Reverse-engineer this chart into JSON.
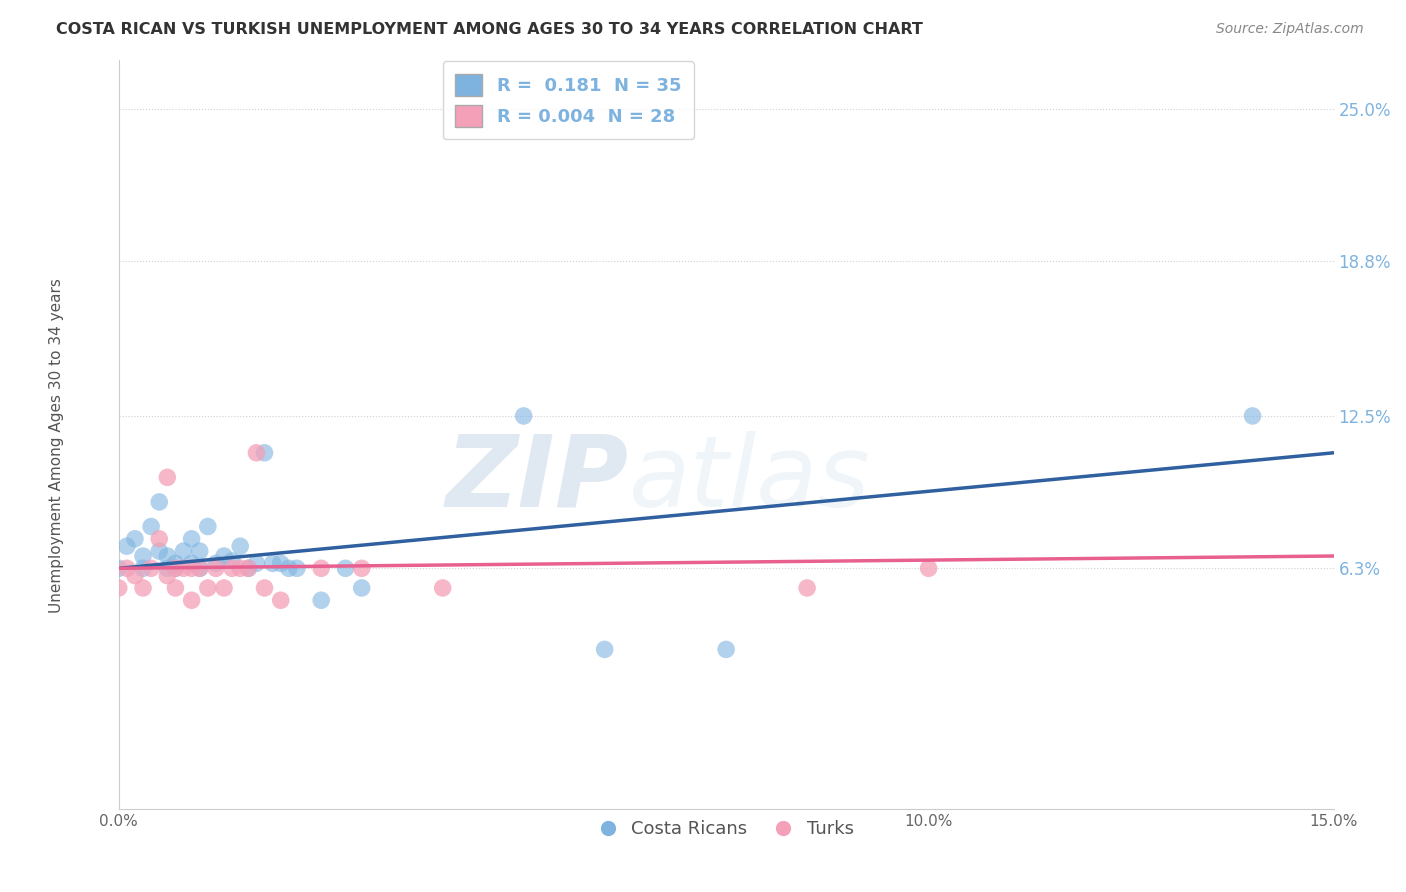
{
  "title": "COSTA RICAN VS TURKISH UNEMPLOYMENT AMONG AGES 30 TO 34 YEARS CORRELATION CHART",
  "source": "Source: ZipAtlas.com",
  "ylabel": "Unemployment Among Ages 30 to 34 years",
  "xlim": [
    0.0,
    0.15
  ],
  "ylim": [
    -0.035,
    0.27
  ],
  "yticks": [
    0.063,
    0.125,
    0.188,
    0.25
  ],
  "ytick_labels": [
    "6.3%",
    "12.5%",
    "18.8%",
    "25.0%"
  ],
  "xticks": [
    0.0,
    0.05,
    0.1,
    0.15
  ],
  "xtick_labels": [
    "0.0%",
    "",
    "10.0%",
    "15.0%"
  ],
  "blue_color": "#7eb3e0",
  "pink_color": "#f4a0b8",
  "blue_line_color": "#3060a0",
  "pink_line_color": "#e86090",
  "watermark_zip": "ZIP",
  "watermark_atlas": "atlas",
  "background_color": "#ffffff",
  "grid_color": "#d0d0d0",
  "costa_rican_points": [
    [
      0.0,
      0.063
    ],
    [
      0.001,
      0.072
    ],
    [
      0.002,
      0.075
    ],
    [
      0.003,
      0.068
    ],
    [
      0.003,
      0.063
    ],
    [
      0.004,
      0.08
    ],
    [
      0.005,
      0.09
    ],
    [
      0.005,
      0.07
    ],
    [
      0.006,
      0.068
    ],
    [
      0.006,
      0.063
    ],
    [
      0.007,
      0.065
    ],
    [
      0.007,
      0.063
    ],
    [
      0.008,
      0.07
    ],
    [
      0.009,
      0.075
    ],
    [
      0.009,
      0.065
    ],
    [
      0.01,
      0.063
    ],
    [
      0.01,
      0.07
    ],
    [
      0.011,
      0.08
    ],
    [
      0.012,
      0.065
    ],
    [
      0.013,
      0.068
    ],
    [
      0.014,
      0.066
    ],
    [
      0.015,
      0.072
    ],
    [
      0.016,
      0.063
    ],
    [
      0.017,
      0.065
    ],
    [
      0.018,
      0.11
    ],
    [
      0.019,
      0.065
    ],
    [
      0.02,
      0.065
    ],
    [
      0.021,
      0.063
    ],
    [
      0.022,
      0.063
    ],
    [
      0.025,
      0.05
    ],
    [
      0.028,
      0.063
    ],
    [
      0.03,
      0.055
    ],
    [
      0.05,
      0.125
    ],
    [
      0.06,
      0.03
    ],
    [
      0.075,
      0.03
    ],
    [
      0.14,
      0.125
    ]
  ],
  "turkish_points": [
    [
      0.0,
      0.055
    ],
    [
      0.001,
      0.063
    ],
    [
      0.002,
      0.06
    ],
    [
      0.003,
      0.055
    ],
    [
      0.004,
      0.063
    ],
    [
      0.005,
      0.075
    ],
    [
      0.006,
      0.1
    ],
    [
      0.006,
      0.06
    ],
    [
      0.007,
      0.063
    ],
    [
      0.007,
      0.055
    ],
    [
      0.008,
      0.063
    ],
    [
      0.009,
      0.05
    ],
    [
      0.009,
      0.063
    ],
    [
      0.01,
      0.063
    ],
    [
      0.011,
      0.055
    ],
    [
      0.012,
      0.063
    ],
    [
      0.013,
      0.055
    ],
    [
      0.014,
      0.063
    ],
    [
      0.015,
      0.063
    ],
    [
      0.016,
      0.063
    ],
    [
      0.017,
      0.11
    ],
    [
      0.018,
      0.055
    ],
    [
      0.02,
      0.05
    ],
    [
      0.025,
      0.063
    ],
    [
      0.03,
      0.063
    ],
    [
      0.04,
      0.055
    ],
    [
      0.085,
      0.055
    ],
    [
      0.1,
      0.063
    ]
  ],
  "blue_trendline": [
    0.063,
    0.11
  ],
  "pink_trendline": [
    0.063,
    0.068
  ]
}
